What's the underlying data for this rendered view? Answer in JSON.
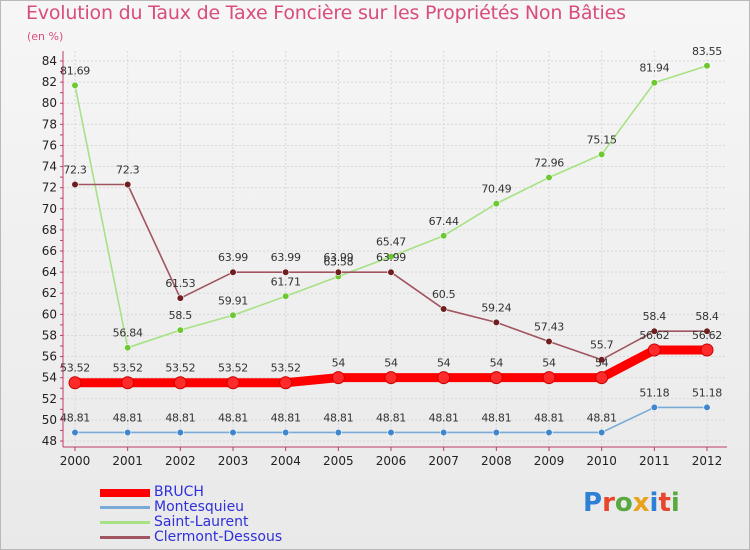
{
  "title": "Evolution du Taux de Taxe Foncière sur les Propriétés Non Bâties",
  "subtitle": "(en %)",
  "logo": {
    "text": "Proxiti",
    "colors": [
      "#2e7fd6",
      "#e8462c",
      "#57a940",
      "#e8a21c",
      "#2e7fd6",
      "#e8462c",
      "#57a940"
    ]
  },
  "chart_data": {
    "type": "line",
    "x": [
      "2000",
      "2001",
      "2002",
      "2003",
      "2004",
      "2005",
      "2006",
      "2007",
      "2008",
      "2009",
      "2010",
      "2011",
      "2012"
    ],
    "ylim": [
      48,
      84
    ],
    "yticks": [
      48,
      50,
      52,
      54,
      56,
      58,
      60,
      62,
      64,
      66,
      68,
      70,
      72,
      74,
      76,
      78,
      80,
      82,
      84
    ],
    "grid": true,
    "legend_position": "bottom-left",
    "series": [
      {
        "name": "BRUCH",
        "color": "#ff0000",
        "marker": "#ff2a2a",
        "values": [
          53.52,
          53.52,
          53.52,
          53.52,
          53.52,
          54,
          54,
          54,
          54,
          54,
          54,
          56.62,
          56.62
        ],
        "labels": [
          "53.52",
          "53.52",
          "53.52",
          "53.52",
          "53.52",
          "54",
          "54",
          "54",
          "54",
          "54",
          "54",
          "56.62",
          "56.62"
        ]
      },
      {
        "name": "Montesquieu",
        "color": "#7aaad6",
        "marker": "#3f86cc",
        "values": [
          48.81,
          48.81,
          48.81,
          48.81,
          48.81,
          48.81,
          48.81,
          48.81,
          48.81,
          48.81,
          48.81,
          51.18,
          51.18
        ],
        "labels": [
          "48.81",
          "48.81",
          "48.81",
          "48.81",
          "48.81",
          "48.81",
          "48.81",
          "48.81",
          "48.81",
          "48.81",
          "48.81",
          "51.18",
          "51.18"
        ]
      },
      {
        "name": "Saint-Laurent",
        "color": "#a6e283",
        "marker": "#6dc832",
        "values": [
          81.69,
          56.84,
          58.5,
          59.91,
          61.71,
          63.58,
          65.47,
          67.44,
          70.49,
          72.96,
          75.15,
          81.94,
          83.55
        ],
        "labels": [
          "81.69",
          "56.84",
          "58.5",
          "59.91",
          "61.71",
          "63.58",
          "65.47",
          "67.44",
          "70.49",
          "72.96",
          "75.15",
          "81.94",
          "83.55"
        ]
      },
      {
        "name": "Clermont-Dessous",
        "color": "#a05560",
        "marker": "#6e1e1e",
        "values": [
          72.3,
          72.3,
          61.53,
          63.99,
          63.99,
          63.99,
          63.99,
          60.5,
          59.24,
          57.43,
          55.7,
          58.4,
          58.4
        ],
        "labels": [
          "72.3",
          "72.3",
          "61.53",
          "63.99",
          "63.99",
          "63.99",
          "63.99",
          "60.5",
          "59.24",
          "57.43",
          "55.7",
          "58.4",
          "58.4"
        ]
      }
    ]
  }
}
